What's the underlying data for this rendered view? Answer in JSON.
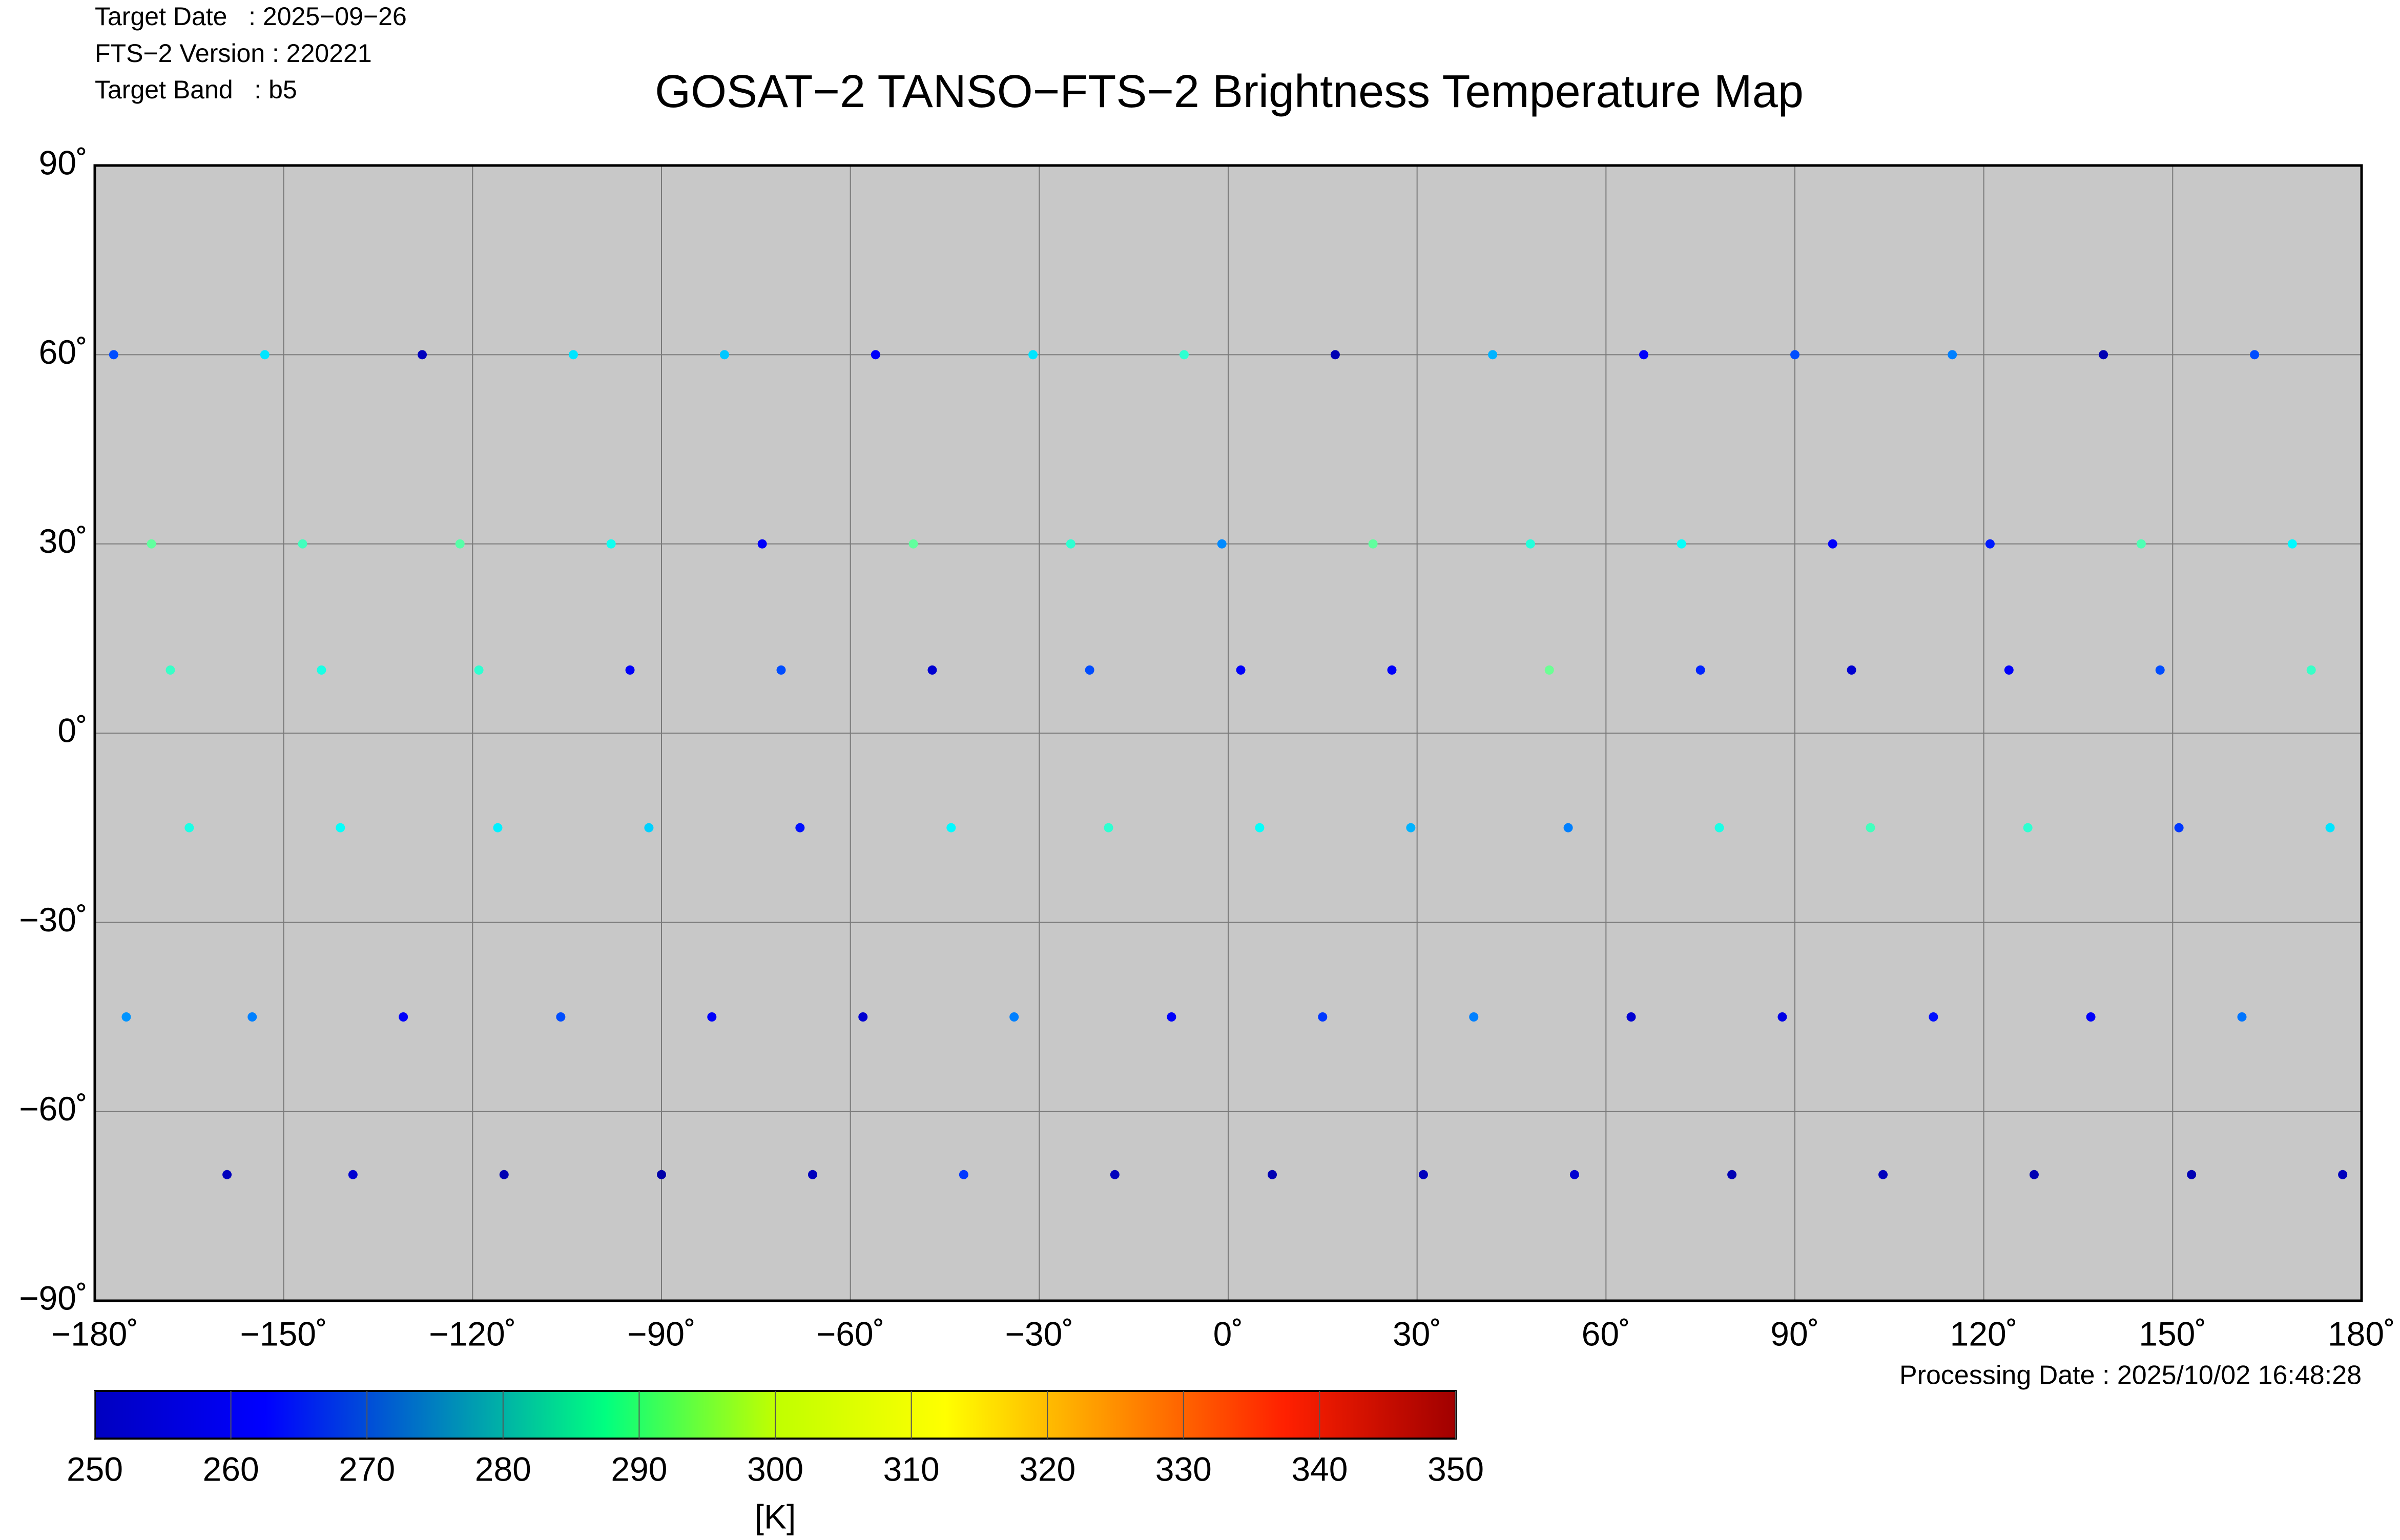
{
  "chart_data": {
    "type": "scatter",
    "title": "GOSAT−2 TANSO−FTS−2 Brightness Temperature Map",
    "info": [
      "Target Date   : 2025−09−26",
      "FTS−2 Version : 220221",
      "Target Band   : b5"
    ],
    "note": "Processing Date : 2025/10/02 16:48:28",
    "xlim": [
      -180,
      180
    ],
    "ylim": [
      -90,
      90
    ],
    "xticks": [
      {
        "value": -180,
        "label": "−180˚"
      },
      {
        "value": -150,
        "label": "−150˚"
      },
      {
        "value": -120,
        "label": "−120˚"
      },
      {
        "value": -90,
        "label": "−90˚"
      },
      {
        "value": -60,
        "label": "−60˚"
      },
      {
        "value": -30,
        "label": "−30˚"
      },
      {
        "value": 0,
        "label": "0˚"
      },
      {
        "value": 30,
        "label": "30˚"
      },
      {
        "value": 60,
        "label": "60˚"
      },
      {
        "value": 90,
        "label": "90˚"
      },
      {
        "value": 120,
        "label": "120˚"
      },
      {
        "value": 150,
        "label": "150˚"
      },
      {
        "value": 180,
        "label": "180˚"
      }
    ],
    "yticks": [
      {
        "value": -90,
        "label": "−90˚"
      },
      {
        "value": -60,
        "label": "−60˚"
      },
      {
        "value": -30,
        "label": "−30˚"
      },
      {
        "value": 0,
        "label": "0˚"
      },
      {
        "value": 30,
        "label": "30˚"
      },
      {
        "value": 60,
        "label": "60˚"
      },
      {
        "value": 90,
        "label": "90˚"
      }
    ],
    "grid": true,
    "colormap": "jet",
    "colorbar": {
      "label": "[K]",
      "lim": [
        250,
        350
      ],
      "ticks": [
        250,
        260,
        270,
        280,
        290,
        300,
        310,
        320,
        330,
        340,
        350
      ]
    },
    "x": [
      -177,
      -171,
      -168,
      -165,
      -155,
      -139,
      -153,
      -147,
      -144,
      -141,
      -131,
      -115,
      -128,
      -122,
      -119,
      -116,
      -106,
      -90,
      -104,
      -98,
      -95,
      -92,
      -82,
      -66,
      -80,
      -74,
      -71,
      -68,
      -58,
      -42,
      -56,
      -50,
      -47,
      -44,
      -34,
      -18,
      -31,
      -25,
      -22,
      -19,
      -9,
      7,
      -7,
      -1,
      2,
      5,
      15,
      31,
      17,
      23,
      26,
      29,
      39,
      55,
      42,
      48,
      51,
      54,
      64,
      80,
      66,
      72,
      75,
      78,
      88,
      104,
      90,
      96,
      99,
      102,
      112,
      128,
      115,
      121,
      124,
      127,
      137,
      153,
      139,
      145,
      148,
      151,
      161,
      177,
      163,
      169,
      172,
      175,
      -175,
      -159
    ],
    "y": [
      60,
      30,
      10,
      -15,
      -45,
      -70,
      60,
      30,
      10,
      -15,
      -45,
      -70,
      60,
      30,
      10,
      -15,
      -45,
      -70,
      60,
      30,
      10,
      -15,
      -45,
      -70,
      60,
      30,
      10,
      -15,
      -45,
      -70,
      60,
      30,
      10,
      -15,
      -45,
      -70,
      60,
      30,
      10,
      -15,
      -45,
      -70,
      60,
      30,
      10,
      -15,
      -45,
      -70,
      60,
      30,
      10,
      -15,
      -45,
      -70,
      60,
      30,
      10,
      -15,
      -45,
      -70,
      60,
      30,
      10,
      -15,
      -45,
      -70,
      60,
      30,
      10,
      -15,
      -45,
      -70,
      60,
      30,
      10,
      -15,
      -45,
      -70,
      60,
      30,
      10,
      -15,
      -45,
      -70,
      60,
      30,
      10,
      -15,
      -45,
      -70
    ],
    "values": [
      270,
      297,
      293,
      290,
      275,
      258,
      285,
      294,
      290,
      288,
      262,
      255,
      256,
      296,
      292,
      286,
      270,
      254,
      285,
      289,
      262,
      283,
      262,
      256,
      282,
      262,
      270,
      264,
      258,
      268,
      262,
      297,
      258,
      287,
      275,
      256,
      285,
      292,
      270,
      292,
      262,
      255,
      292,
      276,
      262,
      288,
      268,
      256,
      255,
      297,
      262,
      280,
      275,
      258,
      280,
      291,
      298,
      275,
      258,
      255,
      262,
      288,
      266,
      290,
      260,
      256,
      270,
      262,
      258,
      294,
      264,
      255,
      275,
      265,
      262,
      292,
      262,
      255,
      255,
      295,
      270,
      268,
      274,
      256,
      270,
      287,
      293,
      285,
      277,
      256
    ]
  }
}
